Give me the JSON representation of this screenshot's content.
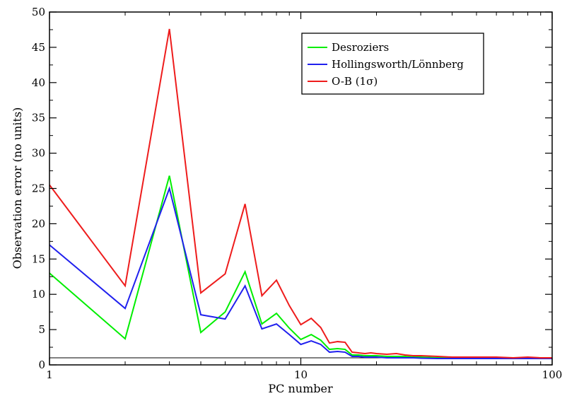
{
  "chart_data": {
    "type": "line",
    "xlabel": "PC number",
    "ylabel": "Observation error (no units)",
    "xscale": "log",
    "xlim": [
      1,
      100
    ],
    "ylim": [
      0,
      50
    ],
    "xticks": [
      1,
      10,
      100
    ],
    "yticks": [
      0,
      5,
      10,
      15,
      20,
      25,
      30,
      35,
      40,
      45,
      50
    ],
    "grid": false,
    "legend_position": "top-right",
    "reference_line": {
      "y": 1,
      "color": "#000000"
    },
    "series": [
      {
        "name": "Desroziers",
        "color": "#00ee00",
        "x": [
          1,
          2,
          3,
          4,
          5,
          6,
          7,
          8,
          9,
          10,
          11,
          12,
          13,
          14,
          15,
          16,
          17,
          18,
          19,
          20,
          22,
          24,
          26,
          28,
          30,
          35,
          40,
          50,
          60,
          70,
          80,
          90,
          100
        ],
        "y": [
          13.0,
          3.7,
          26.8,
          4.6,
          7.5,
          13.2,
          5.8,
          7.3,
          5.2,
          3.6,
          4.3,
          3.5,
          2.2,
          2.3,
          2.2,
          1.4,
          1.4,
          1.3,
          1.3,
          1.3,
          1.2,
          1.2,
          1.2,
          1.1,
          1.1,
          1.0,
          1.0,
          1.0,
          1.0,
          1.0,
          1.0,
          1.0,
          0.95
        ]
      },
      {
        "name": "Hollingsworth/Lönnberg",
        "color": "#2020ee",
        "x": [
          1,
          2,
          3,
          4,
          5,
          6,
          7,
          8,
          9,
          10,
          11,
          12,
          13,
          14,
          15,
          16,
          17,
          18,
          19,
          20,
          22,
          24,
          26,
          28,
          30,
          35,
          40,
          50,
          60,
          70,
          80,
          90,
          100
        ],
        "y": [
          17.0,
          8.0,
          25.0,
          7.1,
          6.5,
          11.2,
          5.1,
          5.8,
          4.3,
          2.9,
          3.4,
          2.9,
          1.8,
          1.9,
          1.8,
          1.2,
          1.2,
          1.1,
          1.1,
          1.1,
          1.0,
          1.0,
          1.0,
          1.0,
          0.95,
          0.9,
          0.9,
          0.9,
          0.9,
          0.9,
          0.9,
          0.9,
          0.9
        ]
      },
      {
        "name": "O-B (1σ)",
        "color": "#ee1c1c",
        "x": [
          1,
          2,
          3,
          4,
          5,
          6,
          7,
          8,
          9,
          10,
          11,
          12,
          13,
          14,
          15,
          16,
          17,
          18,
          19,
          20,
          22,
          24,
          26,
          28,
          30,
          35,
          40,
          50,
          60,
          70,
          80,
          90,
          100
        ],
        "y": [
          25.5,
          11.2,
          47.6,
          10.2,
          12.9,
          22.8,
          9.8,
          12.0,
          8.4,
          5.7,
          6.6,
          5.3,
          3.1,
          3.3,
          3.2,
          1.8,
          1.7,
          1.6,
          1.7,
          1.6,
          1.5,
          1.6,
          1.4,
          1.3,
          1.3,
          1.2,
          1.1,
          1.1,
          1.1,
          1.0,
          1.1,
          1.0,
          1.0
        ]
      }
    ]
  }
}
